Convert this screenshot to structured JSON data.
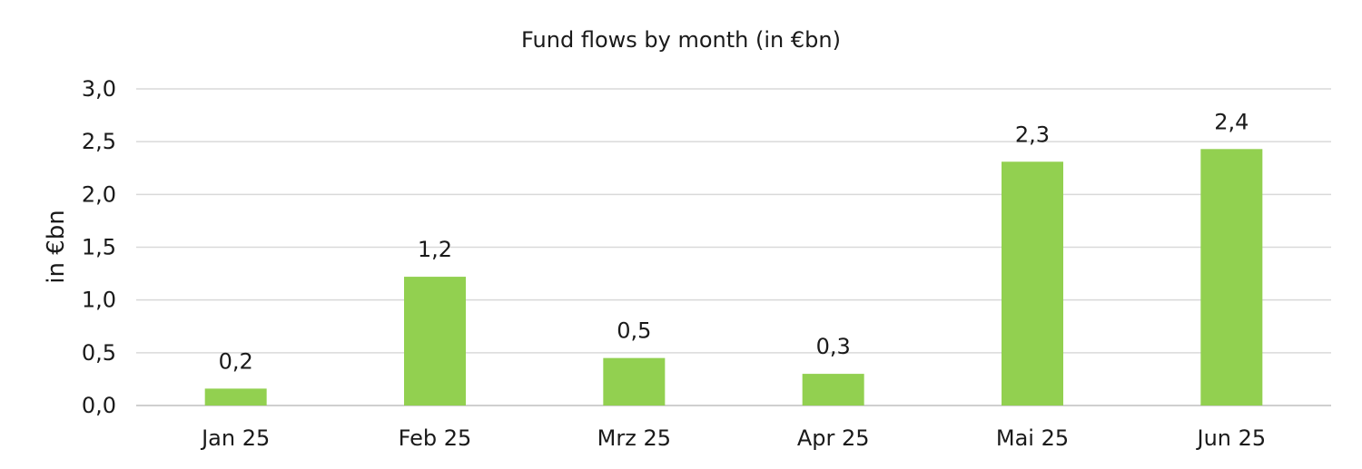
{
  "chart_data": {
    "type": "bar",
    "title": "Fund flows by month (in €bn)",
    "xlabel": "",
    "ylabel": "in €bn",
    "categories": [
      "Jan 25",
      "Feb 25",
      "Mrz 25",
      "Apr 25",
      "Mai 25",
      "Jun 25"
    ],
    "values": [
      0.16,
      1.22,
      0.45,
      0.3,
      2.31,
      2.43
    ],
    "data_labels": [
      "0,2",
      "1,2",
      "0,5",
      "0,3",
      "2,3",
      "2,4"
    ],
    "ylim": [
      0,
      3
    ],
    "yticks": [
      0,
      0.5,
      1.0,
      1.5,
      2.0,
      2.5,
      3.0
    ],
    "ytick_labels": [
      "0,0",
      "0,5",
      "1,0",
      "1,5",
      "2,0",
      "2,5",
      "3,0"
    ],
    "grid": true,
    "legend": "none",
    "bar_color": "#92d050"
  }
}
